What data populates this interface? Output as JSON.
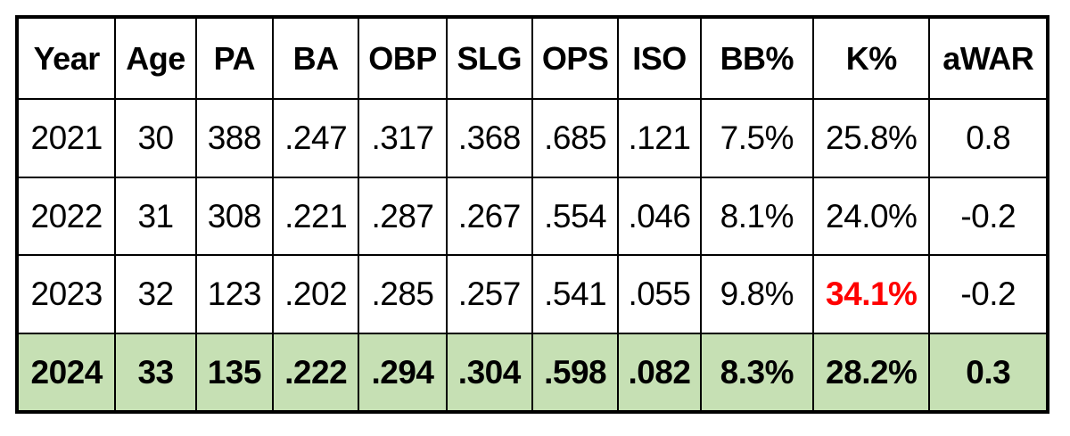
{
  "chart_data": {
    "type": "table",
    "columns": [
      "Year",
      "Age",
      "PA",
      "BA",
      "OBP",
      "SLG",
      "OPS",
      "ISO",
      "BB%",
      "K%",
      "aWAR"
    ],
    "rows": [
      [
        "2021",
        "30",
        "388",
        ".247",
        ".317",
        ".368",
        ".685",
        ".121",
        "7.5%",
        "25.8%",
        "0.8"
      ],
      [
        "2022",
        "31",
        "308",
        ".221",
        ".287",
        ".267",
        ".554",
        ".046",
        "8.1%",
        "24.0%",
        "-0.2"
      ],
      [
        "2023",
        "32",
        "123",
        ".202",
        ".285",
        ".257",
        ".541",
        ".055",
        "9.8%",
        "34.1%",
        "-0.2"
      ],
      [
        "2024",
        "33",
        "135",
        ".222",
        ".294",
        ".304",
        ".598",
        ".082",
        "8.3%",
        "28.2%",
        "0.3"
      ]
    ],
    "highlighted_row": "2024",
    "highlight_color": "#c6e0b4",
    "emphasized_cell": {
      "row": "2023",
      "column": "K%",
      "color": "#ff0000"
    }
  }
}
